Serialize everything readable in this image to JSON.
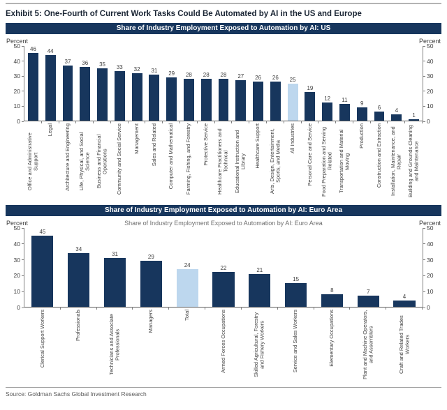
{
  "page": {
    "title": "Exhibit 5: One-Fourth of Current Work Tasks Could Be Automated by AI in the US and Europe",
    "source": "Source: Goldman Sachs Global Investment Research"
  },
  "colors": {
    "navy": "#17365D",
    "highlight_blue": "#BDD7EE",
    "axis_gray": "#808080",
    "text_gray": "#404040"
  },
  "chart_data": [
    {
      "type": "bar",
      "title": "Share of Industry Employment Exposed to Automation by AI: US",
      "subtitle": "",
      "axis_label_left": "Percent",
      "axis_label_right": "Percent",
      "ylim": [
        0,
        50
      ],
      "yticks": [
        0,
        10,
        20,
        30,
        40,
        50
      ],
      "grid": false,
      "legend": "none",
      "highlight_category": "All Industries",
      "categories": [
        "Office and Administrative Support",
        "Legal",
        "Architecture and Engineering",
        "Life, Physical, and Social Science",
        "Business and Financial Operations",
        "Community and Social Service",
        "Management",
        "Sales and Related",
        "Computer and Mathematical",
        "Farming, Fishing, and Forestry",
        "Protective Service",
        "Healthcare Practitioners and Technical",
        "Educational Instruction and Library",
        "Healthcare Support",
        "Arts, Design, Entertainment, Sports, and Media",
        "All Industries",
        "Personal Care and Service",
        "Food Preparation and Serving Related",
        "Transportation and Material Moving",
        "Production",
        "Construction and Extraction",
        "Installation, Maintenance, and Repair",
        "Building and Grounds Cleaning and Maintenance"
      ],
      "values": [
        46,
        44,
        37,
        36,
        35,
        33,
        32,
        31,
        29,
        28,
        28,
        28,
        27,
        26,
        26,
        25,
        19,
        12,
        11,
        9,
        6,
        4,
        1
      ]
    },
    {
      "type": "bar",
      "title": "Share of Industry Employment Exposed to Automation by AI: Euro Area",
      "subtitle": "Share of Industry Employment Exposed to Automation by AI: Euro Area",
      "axis_label_left": "Percent",
      "axis_label_right": "Percent",
      "ylim": [
        0,
        50
      ],
      "yticks": [
        0,
        10,
        20,
        30,
        40,
        50
      ],
      "grid": false,
      "legend": "none",
      "highlight_category": "Total",
      "categories": [
        "Clerical Support Workers",
        "Professionals",
        "Technicians and Associate Professionals",
        "Managers",
        "Total",
        "Armed Forces Occupations",
        "Skilled Agricultural, Forestry and Fishery Workers",
        "Service and Sales Workers",
        "Elementary Occupations",
        "Plant and Machine Operators, and Assemblers",
        "Craft and Related Trades Workers"
      ],
      "values": [
        45,
        34,
        31,
        29,
        24,
        22,
        21,
        15,
        8,
        7,
        4
      ]
    }
  ]
}
